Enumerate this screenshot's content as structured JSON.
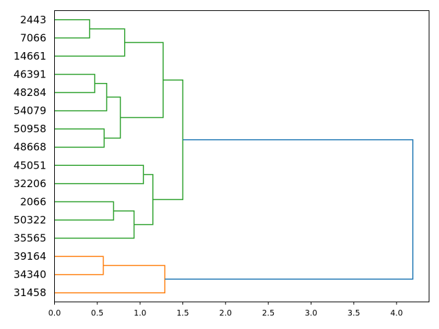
{
  "chart_data": {
    "type": "dendrogram",
    "orientation": "horizontal",
    "title": "",
    "xlabel": "",
    "ylabel": "",
    "xlim": [
      0,
      4.38
    ],
    "xticks": [
      "0.0",
      "0.5",
      "1.0",
      "1.5",
      "2.0",
      "2.5",
      "3.0",
      "3.5",
      "4.0"
    ],
    "colors": {
      "cluster1": "#2ca02c",
      "cluster2": "#ff7f0e",
      "root": "#1f77b4"
    },
    "leaves": [
      "2443",
      "7066",
      "14661",
      "46391",
      "48284",
      "54079",
      "50958",
      "48668",
      "45051",
      "32206",
      "2066",
      "50322",
      "35565",
      "39164",
      "34340",
      "31458"
    ],
    "merges": [
      {
        "id": "n1",
        "children": [
          "2443",
          "7066"
        ],
        "height": 0.41,
        "color": "#2ca02c"
      },
      {
        "id": "n2",
        "children": [
          "n1",
          "14661"
        ],
        "height": 0.82,
        "color": "#2ca02c"
      },
      {
        "id": "n3",
        "children": [
          "46391",
          "48284"
        ],
        "height": 0.47,
        "color": "#2ca02c"
      },
      {
        "id": "n4",
        "children": [
          "n3",
          "54079"
        ],
        "height": 0.61,
        "color": "#2ca02c"
      },
      {
        "id": "n5",
        "children": [
          "50958",
          "48668"
        ],
        "height": 0.58,
        "color": "#2ca02c"
      },
      {
        "id": "n6",
        "children": [
          "n4",
          "n5"
        ],
        "height": 0.77,
        "color": "#2ca02c"
      },
      {
        "id": "n7",
        "children": [
          "n2",
          "n6"
        ],
        "height": 1.27,
        "color": "#2ca02c"
      },
      {
        "id": "n8",
        "children": [
          "45051",
          "32206"
        ],
        "height": 1.04,
        "color": "#2ca02c"
      },
      {
        "id": "n9",
        "children": [
          "2066",
          "50322"
        ],
        "height": 0.69,
        "color": "#2ca02c"
      },
      {
        "id": "n10",
        "children": [
          "n9",
          "35565"
        ],
        "height": 0.93,
        "color": "#2ca02c"
      },
      {
        "id": "n11",
        "children": [
          "n8",
          "n10"
        ],
        "height": 1.15,
        "color": "#2ca02c"
      },
      {
        "id": "n12",
        "children": [
          "n7",
          "n11"
        ],
        "height": 1.5,
        "color": "#2ca02c"
      },
      {
        "id": "n13",
        "children": [
          "39164",
          "34340"
        ],
        "height": 0.57,
        "color": "#ff7f0e"
      },
      {
        "id": "n14",
        "children": [
          "n13",
          "31458"
        ],
        "height": 1.29,
        "color": "#ff7f0e"
      },
      {
        "id": "n15",
        "children": [
          "n12",
          "n14"
        ],
        "height": 4.19,
        "color": "#1f77b4"
      }
    ]
  }
}
